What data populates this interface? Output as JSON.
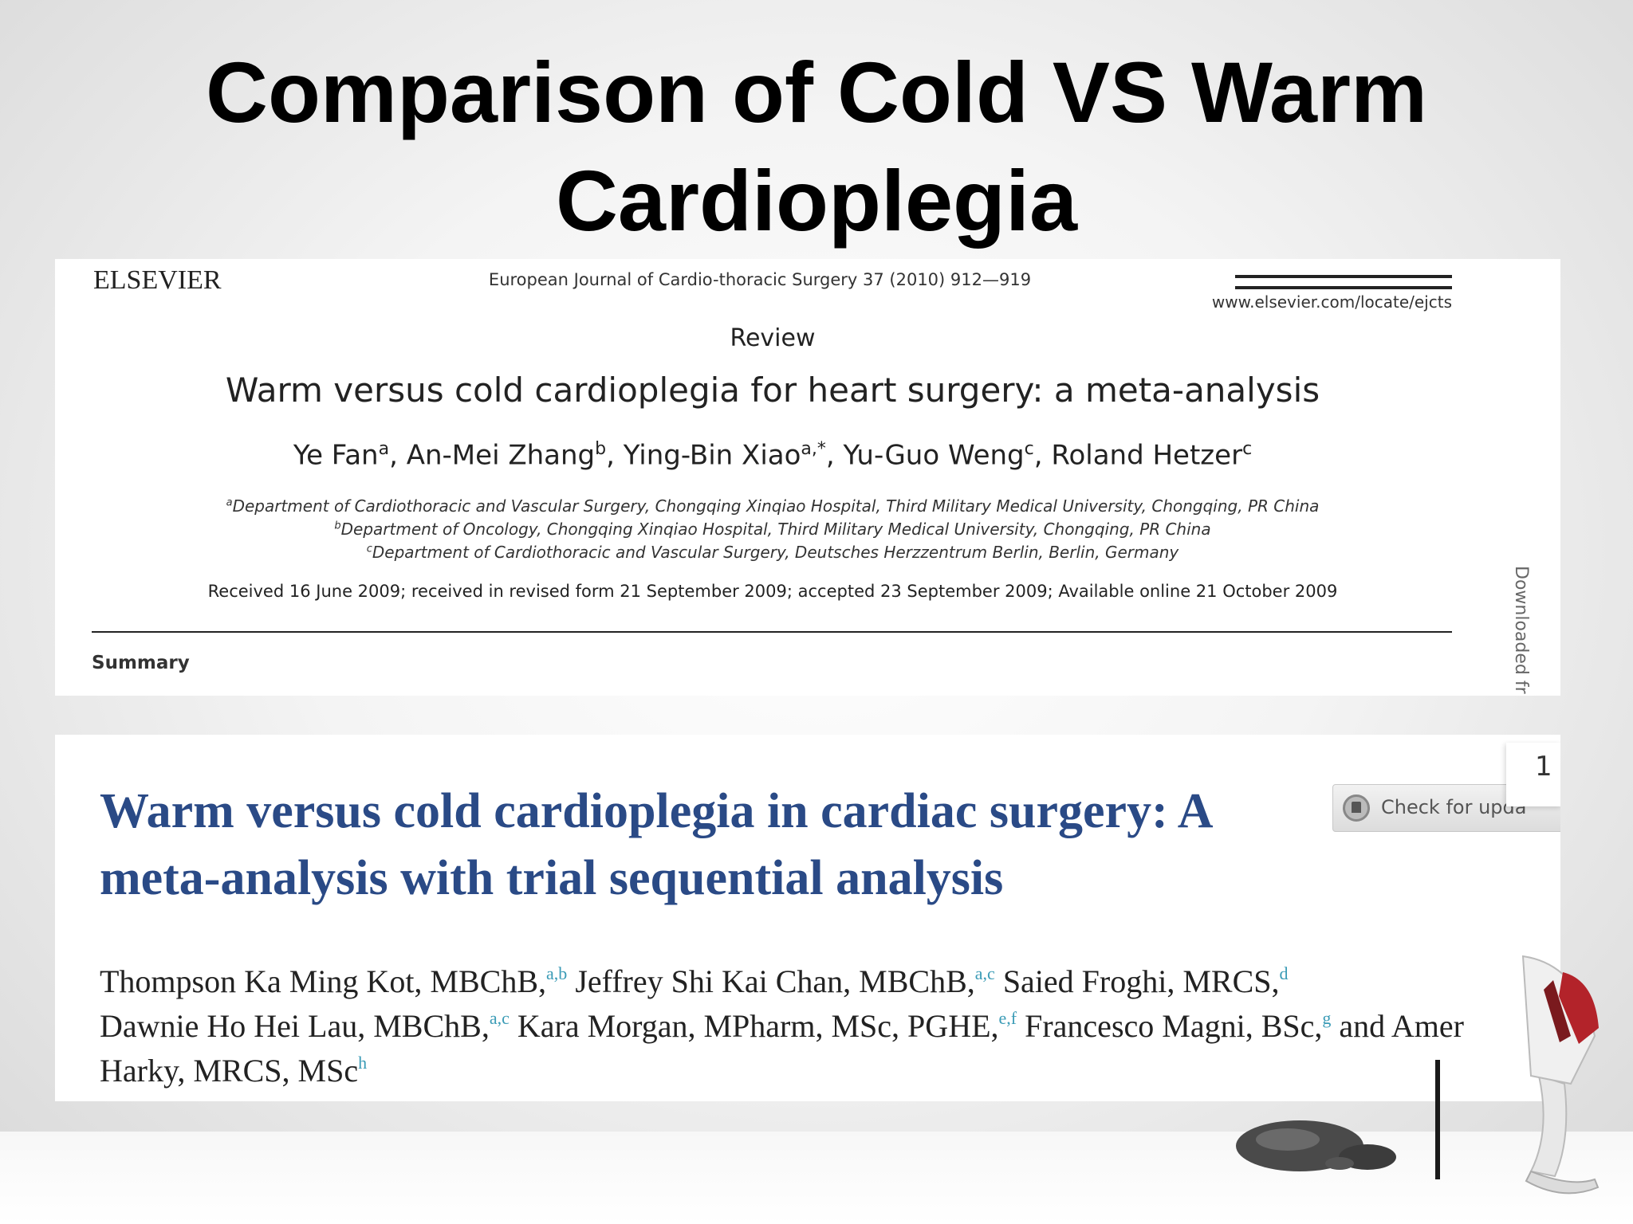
{
  "slide": {
    "title_line1": "Comparison of Cold VS Warm",
    "title_line2": "Cardioplegia"
  },
  "paper1": {
    "publisher": "ELSEVIER",
    "journal": "European Journal of Cardio-thoracic Surgery 37 (2010) 912—919",
    "url": "www.elsevier.com/locate/ejcts",
    "article_type": "Review",
    "title": "Warm versus cold cardioplegia for heart surgery: a meta-analysis",
    "authors": [
      {
        "name": "Ye Fan",
        "sup": "a"
      },
      {
        "name": "An-Mei Zhang",
        "sup": "b"
      },
      {
        "name": "Ying-Bin Xiao",
        "sup": "a,*"
      },
      {
        "name": "Yu-Guo Weng",
        "sup": "c"
      },
      {
        "name": "Roland Hetzer",
        "sup": "c"
      }
    ],
    "affiliations": [
      {
        "sup": "a",
        "text": "Department of Cardiothoracic and Vascular Surgery, Chongqing Xinqiao Hospital, Third Military Medical University, Chongqing, PR China"
      },
      {
        "sup": "b",
        "text": "Department of Oncology, Chongqing Xinqiao Hospital, Third Military Medical University, Chongqing, PR China"
      },
      {
        "sup": "c",
        "text": "Department of Cardiothoracic and Vascular Surgery, Deutsches Herzzentrum Berlin, Berlin, Germany"
      }
    ],
    "dates": "Received 16 June 2009; received in revised form 21 September 2009; accepted 23 September 2009; Available online 21 October 2009",
    "section_label": "Summary",
    "side_text": "Downloaded fr"
  },
  "paper2": {
    "title": "Warm versus cold cardioplegia in cardiac surgery: A meta-analysis with trial sequential analysis",
    "check_button": "Check for upda",
    "page_number": "1",
    "authors": [
      {
        "name": "Thompson Ka Ming Kot, MBChB,",
        "sup": "a,b"
      },
      {
        "name": "Jeffrey Shi Kai Chan, MBChB,",
        "sup": "a,c"
      },
      {
        "name": "Saied Froghi, MRCS,",
        "sup": "d"
      },
      {
        "name": "Dawnie Ho Hei Lau, MBChB,",
        "sup": "a,c"
      },
      {
        "name": "Kara Morgan, MPharm, MSc, PGHE,",
        "sup": "e,f"
      },
      {
        "name": "Francesco Magni, BSc,",
        "sup": "g"
      },
      {
        "name": "and Amer Harky, MRCS, MSc",
        "sup": "h"
      }
    ]
  }
}
